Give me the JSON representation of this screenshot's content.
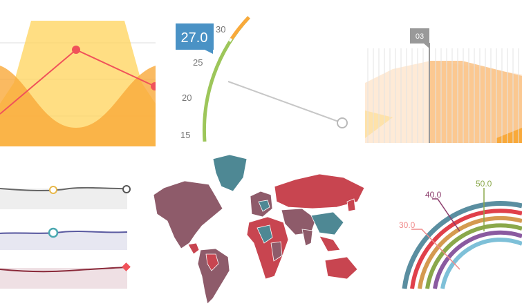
{
  "colors": {
    "yellow": "#ffd35a",
    "orange": "#f9a93a",
    "red": "#f0525a",
    "green": "#9dc65a",
    "blue": "#4a92c5",
    "peach": "#fbc48a",
    "mapBrown": "#8e5b6a",
    "mapTeal": "#4e8894",
    "mapRed": "#c84550",
    "gray": "#666666",
    "purple": "#5a5aa0",
    "maroon": "#8a2a3a"
  },
  "gauge": {
    "value_label": "27.0",
    "ticks": [
      "30",
      "25",
      "20",
      "15"
    ]
  },
  "timeline": {
    "tooltip": "03"
  },
  "radial": {
    "labels": [
      "30.0",
      "40.0",
      "50.0"
    ]
  }
}
